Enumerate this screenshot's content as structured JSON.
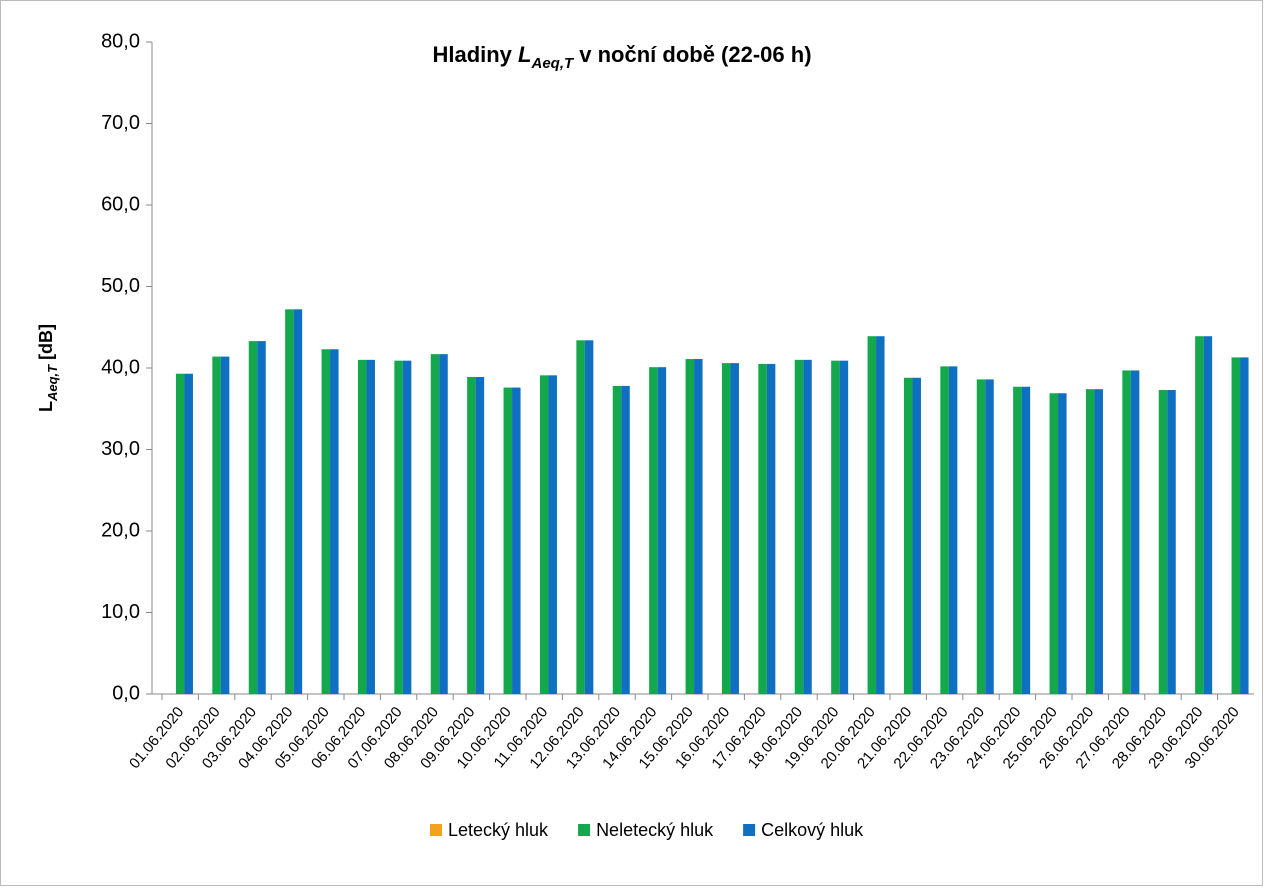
{
  "chart_data": {
    "type": "bar",
    "title": {
      "text": "Hladiny ",
      "symbol": "L",
      "subscript": "Aeq,T",
      "rest": " v noční době (22-06 h)"
    },
    "y_label": {
      "symbol": "L",
      "subscript": "Aeq,T",
      "rest": " [dB]"
    },
    "categories": [
      "01.06.2020",
      "02.06.2020",
      "03.06.2020",
      "04.06.2020",
      "05.06.2020",
      "06.06.2020",
      "07.06.2020",
      "08.06.2020",
      "09.06.2020",
      "10.06.2020",
      "11.06.2020",
      "12.06.2020",
      "13.06.2020",
      "14.06.2020",
      "15.06.2020",
      "16.06.2020",
      "17.06.2020",
      "18.06.2020",
      "19.06.2020",
      "20.06.2020",
      "21.06.2020",
      "22.06.2020",
      "23.06.2020",
      "24.06.2020",
      "25.06.2020",
      "26.06.2020",
      "27.06.2020",
      "28.06.2020",
      "29.06.2020",
      "30.06.2020"
    ],
    "series": [
      {
        "name": "Letecký hluk",
        "color": "#f4a11d",
        "values": [
          null,
          null,
          null,
          null,
          null,
          null,
          null,
          null,
          null,
          null,
          null,
          null,
          null,
          null,
          null,
          null,
          null,
          null,
          null,
          null,
          null,
          null,
          null,
          null,
          null,
          null,
          null,
          null,
          null,
          null
        ]
      },
      {
        "name": "Neletecký hluk",
        "color": "#13a84b",
        "values": [
          39.3,
          41.4,
          43.3,
          47.2,
          42.3,
          41.0,
          40.9,
          41.7,
          38.9,
          37.6,
          39.1,
          43.4,
          37.8,
          40.1,
          41.1,
          40.6,
          40.5,
          41.0,
          40.9,
          43.9,
          38.8,
          40.2,
          38.6,
          37.7,
          36.9,
          37.4,
          39.7,
          37.3,
          43.9,
          41.3
        ]
      },
      {
        "name": "Celkový hluk",
        "color": "#0f6fc1",
        "values": [
          39.3,
          41.4,
          43.3,
          47.2,
          42.3,
          41.0,
          40.9,
          41.7,
          38.9,
          37.6,
          39.1,
          43.4,
          37.8,
          40.1,
          41.1,
          40.6,
          40.5,
          41.0,
          40.9,
          43.9,
          38.8,
          40.2,
          38.6,
          37.7,
          36.9,
          37.4,
          39.7,
          37.3,
          43.9,
          41.3
        ]
      }
    ],
    "ylim": [
      0,
      80
    ],
    "yticks": [
      {
        "value": 0,
        "label": "0,0"
      },
      {
        "value": 10,
        "label": "10,0"
      },
      {
        "value": 20,
        "label": "20,0"
      },
      {
        "value": 30,
        "label": "30,0"
      },
      {
        "value": 40,
        "label": "40,0"
      },
      {
        "value": 50,
        "label": "50,0"
      },
      {
        "value": 60,
        "label": "60,0"
      },
      {
        "value": 70,
        "label": "70,0"
      },
      {
        "value": 80,
        "label": "80,0"
      }
    ],
    "grid": false,
    "legend": "bottom"
  }
}
